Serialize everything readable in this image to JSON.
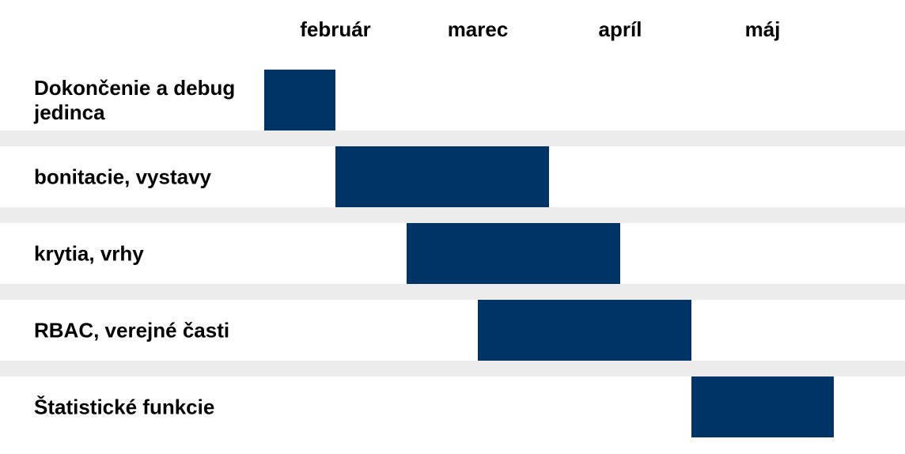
{
  "chart_data": {
    "type": "gantt",
    "months": [
      "február",
      "marec",
      "apríl",
      "máj"
    ],
    "tasks": [
      {
        "label_lines": [
          "Dokončenie a debug",
          "jedinca"
        ],
        "start": 0,
        "end": 1
      },
      {
        "label_lines": [
          "bonitacie, vystavy"
        ],
        "start": 1,
        "end": 4
      },
      {
        "label_lines": [
          "krytia, vrhy"
        ],
        "start": 2,
        "end": 5
      },
      {
        "label_lines": [
          "RBAC, verejné časti"
        ],
        "start": 3,
        "end": 6
      },
      {
        "label_lines": [
          "Štatistické funkcie"
        ],
        "start": 6,
        "end": 8
      }
    ],
    "units_per_month": 2,
    "colors": {
      "bar": "#003366",
      "separator": "#ececec",
      "background": "#ffffff",
      "text": "#000000"
    }
  }
}
